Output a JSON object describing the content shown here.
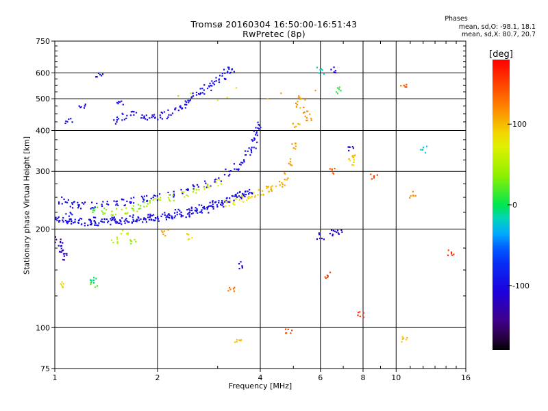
{
  "chart_data": {
    "type": "scatter",
    "title": "Tromsø 20160304 16:50:00-16:51:43",
    "subtitle": "RwPretec (8p)",
    "xlabel": "Frequency [MHz]",
    "ylabel": "Stationary phase Virtual Height [km]",
    "x_scale": "log",
    "y_scale": "log",
    "xlim": [
      1,
      16
    ],
    "ylim": [
      75,
      750
    ],
    "x_ticks": [
      1,
      2,
      4,
      6,
      8,
      10,
      16
    ],
    "x_tick_labels": [
      "1",
      "2",
      "4",
      "6",
      "8",
      "10",
      "16"
    ],
    "y_ticks": [
      75,
      100,
      200,
      300,
      400,
      500,
      600,
      750
    ],
    "y_tick_labels": [
      "75",
      "100",
      "200",
      "300",
      "400",
      "500",
      "600",
      "750"
    ],
    "grid": true,
    "colorbar": {
      "label": "[deg]",
      "range": [
        -180,
        180
      ],
      "ticks": [
        100,
        0,
        -100
      ],
      "tick_labels": [
        "100",
        "0",
        "-100"
      ]
    },
    "phase_annotation": {
      "heading": "Phases",
      "line_o": "mean, sd,O: -98.1, 18.1",
      "line_x": "mean, sd,X:  80.7, 20.7"
    },
    "series": [
      {
        "description": "low F-layer trace (O-mode)",
        "points": [
          [
            1.02,
            215,
            -98
          ],
          [
            1.05,
            213,
            -98
          ],
          [
            1.08,
            212,
            -98
          ],
          [
            1.12,
            212,
            -100
          ],
          [
            1.16,
            211,
            -96
          ],
          [
            1.2,
            211,
            -98
          ],
          [
            1.25,
            210,
            -96
          ],
          [
            1.3,
            210,
            -100
          ],
          [
            1.35,
            210,
            -98
          ],
          [
            1.4,
            210,
            -98
          ],
          [
            1.46,
            211,
            -95
          ],
          [
            1.52,
            212,
            -98
          ],
          [
            1.58,
            212,
            -100
          ],
          [
            1.65,
            213,
            -98
          ],
          [
            1.72,
            213,
            -96
          ],
          [
            1.8,
            214,
            -98
          ],
          [
            1.88,
            215,
            -100
          ],
          [
            1.96,
            216,
            -98
          ],
          [
            2.05,
            217,
            -98
          ],
          [
            2.15,
            218,
            -96
          ],
          [
            2.25,
            219,
            -98
          ],
          [
            2.35,
            221,
            -100
          ],
          [
            2.45,
            223,
            -98
          ],
          [
            2.55,
            225,
            -98
          ],
          [
            2.65,
            227,
            -96
          ],
          [
            2.75,
            230,
            -98
          ],
          [
            2.85,
            233,
            -100
          ],
          [
            2.95,
            236,
            -98
          ],
          [
            3.05,
            240,
            -98
          ],
          [
            3.15,
            243,
            -96
          ],
          [
            3.25,
            247,
            -98
          ],
          [
            3.35,
            250,
            -100
          ],
          [
            3.45,
            253,
            -98
          ],
          [
            3.55,
            256,
            -98
          ],
          [
            3.65,
            258,
            -96
          ],
          [
            3.7,
            262,
            -98
          ],
          [
            1.1,
            220,
            -96
          ],
          [
            1.3,
            214,
            -100
          ],
          [
            1.5,
            214,
            -98
          ],
          [
            1.7,
            216,
            -98
          ],
          [
            1.9,
            220,
            -96
          ],
          [
            2.1,
            222,
            -100
          ],
          [
            2.3,
            225,
            -98
          ],
          [
            2.5,
            228,
            -98
          ],
          [
            2.7,
            232,
            -96
          ],
          [
            2.9,
            238,
            -98
          ]
        ]
      },
      {
        "description": "upper F-layer trace (O-mode)",
        "points": [
          [
            1.05,
            245,
            -98
          ],
          [
            1.1,
            240,
            -96
          ],
          [
            1.15,
            238,
            -100
          ],
          [
            1.2,
            236,
            -98
          ],
          [
            1.3,
            236,
            -98
          ],
          [
            1.4,
            238,
            -96
          ],
          [
            1.5,
            240,
            -100
          ],
          [
            1.6,
            242,
            -98
          ],
          [
            1.7,
            244,
            -98
          ],
          [
            1.8,
            246,
            -96
          ],
          [
            1.9,
            248,
            -98
          ],
          [
            2.0,
            250,
            -100
          ],
          [
            2.2,
            255,
            -98
          ],
          [
            2.4,
            262,
            -98
          ],
          [
            2.6,
            268,
            -96
          ],
          [
            2.8,
            275,
            -98
          ],
          [
            3.0,
            285,
            -100
          ],
          [
            3.2,
            298,
            -98
          ],
          [
            3.4,
            310,
            -98
          ],
          [
            3.55,
            322,
            -96
          ],
          [
            3.7,
            338,
            -98
          ],
          [
            3.8,
            355,
            -100
          ],
          [
            3.85,
            375,
            -98
          ],
          [
            3.9,
            395,
            -98
          ],
          [
            3.95,
            415,
            -96
          ]
        ]
      },
      {
        "description": "F-layer trace (X-mode)",
        "points": [
          [
            1.3,
            228,
            20
          ],
          [
            1.4,
            226,
            30
          ],
          [
            1.5,
            225,
            40
          ],
          [
            1.6,
            228,
            50
          ],
          [
            1.7,
            232,
            40
          ],
          [
            1.8,
            236,
            30
          ],
          [
            1.9,
            240,
            40
          ],
          [
            2.0,
            245,
            50
          ],
          [
            2.2,
            250,
            45
          ],
          [
            2.4,
            256,
            55
          ],
          [
            2.6,
            262,
            60
          ],
          [
            2.8,
            270,
            65
          ],
          [
            3.0,
            278,
            70
          ],
          [
            3.2,
            240,
            75
          ],
          [
            3.4,
            242,
            80
          ],
          [
            3.6,
            248,
            85
          ],
          [
            3.8,
            254,
            90
          ],
          [
            4.0,
            260,
            95
          ],
          [
            4.2,
            264,
            100
          ],
          [
            4.4,
            268,
            105
          ],
          [
            4.6,
            275,
            108
          ],
          [
            4.8,
            290,
            110
          ],
          [
            4.9,
            320,
            112
          ],
          [
            5.0,
            360,
            110
          ],
          [
            5.1,
            420,
            108
          ],
          [
            5.2,
            480,
            110
          ],
          [
            5.3,
            500,
            112
          ],
          [
            5.45,
            460,
            120
          ],
          [
            5.55,
            440,
            118
          ]
        ]
      },
      {
        "description": "multiple-reflection echoes (O-mode)",
        "points": [
          [
            1.5,
            430,
            -98
          ],
          [
            1.6,
            440,
            -96
          ],
          [
            1.7,
            450,
            -100
          ],
          [
            1.8,
            440,
            -98
          ],
          [
            1.9,
            435,
            -98
          ],
          [
            2.0,
            438,
            -96
          ],
          [
            2.1,
            445,
            -100
          ],
          [
            2.2,
            455,
            -98
          ],
          [
            2.3,
            470,
            -98
          ],
          [
            2.4,
            480,
            -96
          ],
          [
            2.5,
            495,
            -98
          ],
          [
            2.6,
            510,
            -100
          ],
          [
            2.7,
            525,
            -98
          ],
          [
            2.8,
            540,
            -98
          ],
          [
            2.9,
            555,
            -96
          ],
          [
            3.0,
            570,
            -98
          ],
          [
            3.1,
            585,
            -100
          ],
          [
            3.2,
            600,
            -98
          ],
          [
            3.3,
            610,
            -98
          ],
          [
            1.1,
            430,
            -96
          ],
          [
            1.2,
            470,
            -98
          ],
          [
            1.35,
            590,
            -100
          ],
          [
            1.55,
            480,
            -98
          ]
        ]
      },
      {
        "description": "multiple-reflection echoes (X-mode)",
        "points": [
          [
            2.3,
            510,
            40
          ],
          [
            2.5,
            520,
            55
          ],
          [
            3.0,
            495,
            80
          ],
          [
            3.2,
            505,
            85
          ],
          [
            3.4,
            540,
            90
          ],
          [
            4.2,
            500,
            100
          ],
          [
            4.6,
            520,
            110
          ],
          [
            5.8,
            530,
            115
          ]
        ]
      },
      {
        "description": "scattered echoes",
        "points": [
          [
            1.02,
            185,
            -140
          ],
          [
            1.03,
            178,
            -110
          ],
          [
            1.05,
            170,
            -120
          ],
          [
            1.08,
            165,
            -130
          ],
          [
            1.04,
            135,
            90
          ],
          [
            1.3,
            135,
            20
          ],
          [
            1.3,
            140,
            -10
          ],
          [
            1.5,
            185,
            60
          ],
          [
            1.6,
            195,
            60
          ],
          [
            1.7,
            185,
            40
          ],
          [
            2.1,
            195,
            110
          ],
          [
            2.5,
            190,
            90
          ],
          [
            3.3,
            130,
            130
          ],
          [
            3.45,
            90,
            100
          ],
          [
            3.5,
            155,
            -110
          ],
          [
            4.85,
            98,
            150
          ],
          [
            6.0,
            190,
            -110
          ],
          [
            6.3,
            145,
            150
          ],
          [
            6.5,
            195,
            -110
          ],
          [
            6.5,
            300,
            140
          ],
          [
            6.6,
            610,
            -110
          ],
          [
            6.8,
            530,
            10
          ],
          [
            7.4,
            350,
            -120
          ],
          [
            7.4,
            330,
            100
          ],
          [
            7.5,
            320,
            90
          ],
          [
            7.9,
            110,
            160
          ],
          [
            8.6,
            290,
            150
          ],
          [
            10.5,
            550,
            140
          ],
          [
            10.6,
            92,
            100
          ],
          [
            12.0,
            350,
            -20
          ],
          [
            11.2,
            255,
            120
          ],
          [
            14.5,
            170,
            160
          ],
          [
            6.0,
            610,
            -20
          ],
          [
            6.8,
            195,
            -110
          ]
        ]
      }
    ]
  }
}
